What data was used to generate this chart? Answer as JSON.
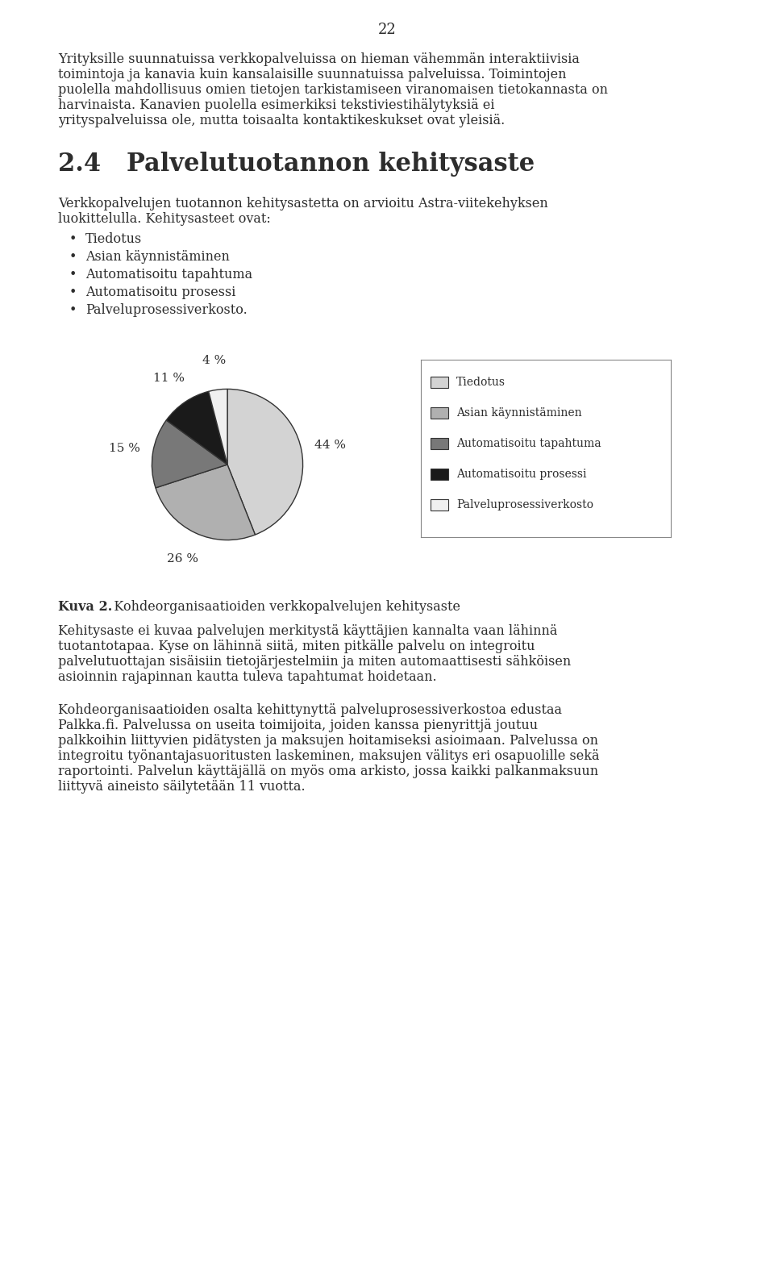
{
  "page_number": "22",
  "paragraph1": "Yrityksille suunnatuissa verkkopalveluissa on hieman vähemmän interaktiivisia toimintoja ja kanavia kuin kansalaisille suunnatuissa palveluissa. Toimintojen puolella mahdollisuus omien tietojen tarkistamiseen viranomaisen tietokannasta on harvinaista.  Kanavien puolella esimerkiksi tekstiviestihälytyksiä ei yrityspalveluissa ole, mutta toisaalta kontaktikeskukset ovat yleisiä.",
  "section_number": "2.4",
  "section_title": "Palvelutuotannon kehitysaste",
  "paragraph2": "Verkkopalvelujen tuotannon kehitysastetta on arvioitu Astra-viitekehyksen luokittelulla.  Kehitysasteet ovat:",
  "bullet_items": [
    "Tiedotus",
    "Asian käynnistäminen",
    "Automatisoitu tapahtuma",
    "Automatisoitu prosessi",
    "Palveluprosessiverkosto."
  ],
  "pie_values": [
    44,
    26,
    15,
    11,
    4
  ],
  "pie_labels": [
    "44 %",
    "26 %",
    "15 %",
    "11 %",
    "4 %"
  ],
  "pie_colors": [
    "#d3d3d3",
    "#b0b0b0",
    "#787878",
    "#1a1a1a",
    "#f0f0f0"
  ],
  "pie_legend_labels": [
    "Tiedotus",
    "Asian käynnistäminen",
    "Automatisoitu tapahtuma",
    "Automatisoitu prosessi",
    "Palveluprosessiverkosto"
  ],
  "pie_legend_colors": [
    "#d3d3d3",
    "#b0b0b0",
    "#787878",
    "#1a1a1a",
    "#f0f0f0"
  ],
  "figure_caption_bold": "Kuva 2.",
  "figure_caption_text": "   Kohdeorganisaatioiden verkkopalvelujen kehitysaste",
  "paragraph3": "Kehitysaste ei kuvaa palvelujen merkitystä käyttäjien kannalta vaan lähinnä tuotantotapaa. Kyse on lähinnä siitä, miten pitkälle palvelu on integroitu palvelutuottajan sisäisiin tietojärjestelmiin ja miten automaattisesti sähköisen asioinnin rajapinnan kautta tuleva tapahtumat hoidetaan.",
  "paragraph4": "Kohdeorganisaatioiden osalta kehittynyttä palveluprosessiverkostoa edustaa Palkka.fi. Palvelussa on useita toimijoita, joiden kanssa pienyrittjä joutuu palkkoihin liittyvien pidätysten ja maksujen hoitamiseksi asioimaan. Palvelussa on integroitu työnantajasuoritusten laskeminen, maksujen välitys eri osapuolille sekä raportointi. Palvelun käyttäjällä on myös oma arkisto, jossa kaikki palkanmaksuun liittyvä aineisto säilytetään 11 vuotta.",
  "bg_color": "#ffffff",
  "text_color": "#2d2d2d",
  "body_fontsize": 11.5,
  "section_fontsize": 22,
  "page_num_fontsize": 13
}
